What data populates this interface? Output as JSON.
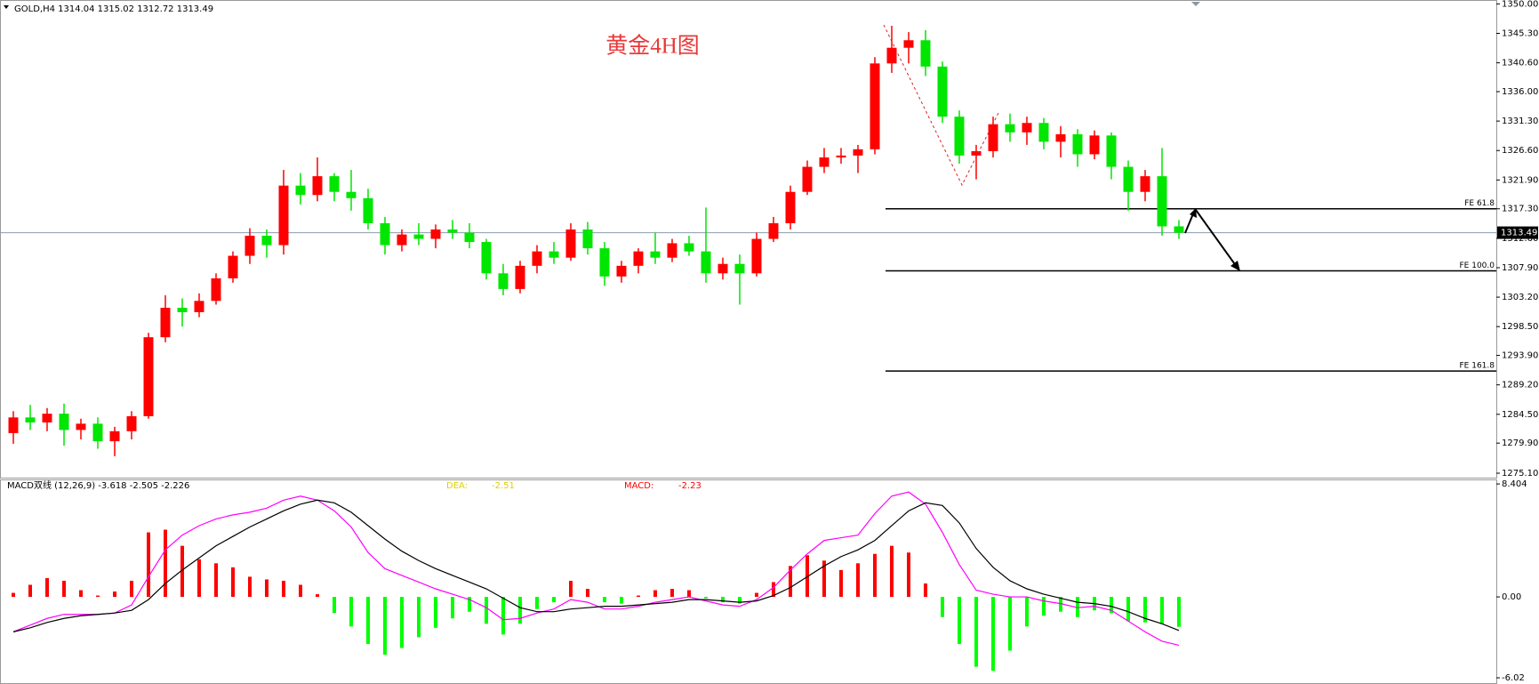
{
  "chart_data": [
    {
      "type": "candlestick",
      "header": "GOLD,H4  1314.04 1315.02 1312.72 1313.49",
      "title": "黄金4H图",
      "open": [
        1281.5,
        1284.0,
        1283.2,
        1284.6,
        1282.0,
        1283.0,
        1280.2,
        1281.8,
        1284.2,
        1296.8,
        1301.5,
        1300.8,
        1302.6,
        1306.2,
        1309.8,
        1313.0,
        1311.5,
        1321.0,
        1319.5,
        1322.5,
        1320.0,
        1319.0,
        1315.0,
        1311.5,
        1313.2,
        1312.5,
        1314.0,
        1313.5,
        1312.0,
        1307.0,
        1304.5,
        1308.2,
        1310.5,
        1309.5,
        1314.0,
        1311.0,
        1306.5,
        1308.2,
        1310.5,
        1309.5,
        1311.8,
        1310.5,
        1307.0,
        1308.5,
        1307.0,
        1312.5,
        1315.0,
        1320.0,
        1324.0,
        1325.5,
        1325.8,
        1326.8,
        1340.5,
        1343.0,
        1344.2,
        1340.0,
        1332.0,
        1325.8,
        1326.5,
        1330.8,
        1329.5,
        1331.0,
        1328.0,
        1329.2,
        1326.0,
        1329.0,
        1324.0,
        1320.0,
        1322.5,
        1314.5
      ],
      "high": [
        1285.0,
        1286.0,
        1285.5,
        1286.2,
        1283.8,
        1284.0,
        1282.5,
        1285.0,
        1297.5,
        1303.5,
        1303.0,
        1303.8,
        1307.0,
        1310.5,
        1314.2,
        1314.0,
        1323.5,
        1323.0,
        1325.5,
        1323.0,
        1323.5,
        1320.5,
        1316.0,
        1314.0,
        1315.0,
        1314.8,
        1315.5,
        1315.0,
        1312.5,
        1308.5,
        1309.0,
        1311.5,
        1312.0,
        1315.0,
        1315.2,
        1312.0,
        1309.0,
        1311.0,
        1313.5,
        1312.5,
        1313.0,
        1317.5,
        1309.5,
        1310.0,
        1313.5,
        1316.0,
        1321.0,
        1325.0,
        1327.0,
        1327.0,
        1327.5,
        1341.5,
        1346.5,
        1345.5,
        1345.8,
        1340.8,
        1333.0,
        1327.5,
        1332.0,
        1332.5,
        1332.0,
        1331.8,
        1330.5,
        1330.0,
        1329.8,
        1329.5,
        1325.0,
        1323.5,
        1327.0,
        1315.5
      ],
      "low": [
        1279.8,
        1282.0,
        1281.8,
        1279.5,
        1280.5,
        1279.0,
        1277.8,
        1280.5,
        1283.8,
        1296.0,
        1298.5,
        1300.0,
        1302.0,
        1305.5,
        1308.5,
        1309.5,
        1310.0,
        1318.0,
        1318.5,
        1318.5,
        1317.0,
        1314.0,
        1310.0,
        1310.5,
        1311.5,
        1311.0,
        1312.5,
        1311.0,
        1306.0,
        1303.5,
        1303.8,
        1307.0,
        1308.5,
        1309.0,
        1310.0,
        1305.0,
        1305.5,
        1307.0,
        1308.5,
        1308.8,
        1309.8,
        1305.5,
        1306.0,
        1302.0,
        1306.5,
        1312.0,
        1314.0,
        1319.5,
        1323.0,
        1324.5,
        1323.0,
        1326.0,
        1339.0,
        1340.5,
        1338.5,
        1331.0,
        1324.5,
        1322.0,
        1325.5,
        1328.0,
        1327.5,
        1326.8,
        1325.5,
        1324.0,
        1325.2,
        1322.0,
        1317.0,
        1318.5,
        1313.0,
        1312.5
      ],
      "close": [
        1284.0,
        1283.2,
        1284.6,
        1282.0,
        1283.0,
        1280.2,
        1281.8,
        1284.2,
        1296.8,
        1301.5,
        1300.8,
        1302.6,
        1306.2,
        1309.8,
        1313.0,
        1311.5,
        1321.0,
        1319.5,
        1322.5,
        1320.0,
        1319.0,
        1315.0,
        1311.5,
        1313.2,
        1312.5,
        1314.0,
        1313.5,
        1312.0,
        1307.0,
        1304.5,
        1308.2,
        1310.5,
        1309.5,
        1314.0,
        1311.0,
        1306.5,
        1308.2,
        1310.5,
        1309.5,
        1311.8,
        1310.5,
        1307.0,
        1308.5,
        1307.0,
        1312.5,
        1315.0,
        1320.0,
        1324.0,
        1325.5,
        1325.8,
        1326.8,
        1340.5,
        1343.0,
        1344.2,
        1340.0,
        1332.0,
        1325.8,
        1326.5,
        1330.8,
        1329.5,
        1331.0,
        1328.0,
        1329.2,
        1326.0,
        1329.0,
        1324.0,
        1320.0,
        1322.5,
        1314.5,
        1313.49
      ],
      "up_color": "#ff0000",
      "down_color": "#00e600",
      "ylim": [
        1275.1,
        1350
      ],
      "yticks": [
        {
          "value": 1350,
          "label": "1350.00"
        },
        {
          "value": 1345.3,
          "label": "1345.30"
        },
        {
          "value": 1340.6,
          "label": "1340.60"
        },
        {
          "value": 1336,
          "label": "1336.00"
        },
        {
          "value": 1331.3,
          "label": "1331.30"
        },
        {
          "value": 1326.6,
          "label": "1326.60"
        },
        {
          "value": 1321.9,
          "label": "1321.90"
        },
        {
          "value": 1317.3,
          "label": "1317.30"
        },
        {
          "value": 1312.6,
          "label": "1312.60"
        },
        {
          "value": 1307.9,
          "label": "1307.90"
        },
        {
          "value": 1303.2,
          "label": "1303.20"
        },
        {
          "value": 1298.5,
          "label": "1298.50"
        },
        {
          "value": 1293.9,
          "label": "1293.90"
        },
        {
          "value": 1289.2,
          "label": "1289.20"
        },
        {
          "value": 1284.5,
          "label": "1284.50"
        },
        {
          "value": 1279.9,
          "label": "1279.90"
        },
        {
          "value": 1275.1,
          "label": "1275.10"
        }
      ],
      "last_price": 1313.49,
      "levels": [
        {
          "label": "FE 61.8",
          "value": 1317.3
        },
        {
          "label": "FE 100.0",
          "value": 1307.4
        },
        {
          "label": "FE 161.8",
          "value": 1291.4
        }
      ]
    },
    {
      "type": "macd",
      "header": "MACD双线 (12,26,9) -3.618 -2.505 -2.226",
      "dea_label": "DEA:",
      "dea_value": -2.51,
      "macd_label": "MACD:",
      "macd_value": -2.23,
      "histogram": [
        0.3,
        0.9,
        1.4,
        1.2,
        0.5,
        0.1,
        0.4,
        1.2,
        4.8,
        5.0,
        3.8,
        2.8,
        2.5,
        2.2,
        1.5,
        1.3,
        1.2,
        0.9,
        0.2,
        -1.2,
        -2.2,
        -3.5,
        -4.3,
        -3.8,
        -3.0,
        -2.3,
        -1.6,
        -1.1,
        -2.0,
        -2.8,
        -2.0,
        -0.9,
        -0.4,
        1.2,
        0.6,
        -0.4,
        -0.5,
        0.1,
        0.5,
        0.6,
        0.5,
        -0.1,
        -0.4,
        -0.5,
        0.3,
        1.1,
        2.3,
        3.1,
        2.7,
        2.0,
        2.5,
        3.2,
        3.8,
        3.3,
        1.0,
        -1.5,
        -3.5,
        -5.2,
        -5.5,
        -4.0,
        -2.2,
        -1.4,
        -1.1,
        -1.5,
        -1.0,
        -1.2,
        -1.8,
        -1.9,
        -2.0,
        -2.23
      ],
      "pos_color": "#ff0000",
      "neg_color": "#00ff00",
      "series": [
        {
          "color": "#ff00ff",
          "values": [
            -2.6,
            -2.1,
            -1.6,
            -1.3,
            -1.3,
            -1.3,
            -1.2,
            -0.6,
            1.5,
            3.5,
            4.6,
            5.3,
            5.8,
            6.1,
            6.3,
            6.6,
            7.2,
            7.5,
            7.2,
            6.4,
            5.2,
            3.3,
            2.1,
            1.6,
            1.1,
            0.6,
            0.2,
            -0.2,
            -0.8,
            -1.7,
            -1.6,
            -1.2,
            -0.9,
            -0.2,
            -0.4,
            -0.9,
            -0.9,
            -0.7,
            -0.4,
            -0.2,
            0.0,
            -0.3,
            -0.6,
            -0.7,
            -0.2,
            0.7,
            2.0,
            3.2,
            4.2,
            4.4,
            4.6,
            6.2,
            7.5,
            7.8,
            6.9,
            4.8,
            2.4,
            0.5,
            0.2,
            0.0,
            0.0,
            -0.3,
            -0.5,
            -0.8,
            -0.7,
            -1.0,
            -1.8,
            -2.6,
            -3.3,
            -3.6
          ]
        },
        {
          "color": "#000000",
          "values": [
            -2.6,
            -2.3,
            -1.9,
            -1.6,
            -1.4,
            -1.3,
            -1.2,
            -1.0,
            -0.2,
            1.0,
            2.0,
            2.9,
            3.8,
            4.5,
            5.2,
            5.8,
            6.4,
            6.9,
            7.2,
            7.0,
            6.3,
            5.3,
            4.3,
            3.4,
            2.7,
            2.1,
            1.6,
            1.1,
            0.6,
            -0.1,
            -0.8,
            -1.1,
            -1.1,
            -0.9,
            -0.8,
            -0.7,
            -0.7,
            -0.6,
            -0.5,
            -0.4,
            -0.2,
            -0.2,
            -0.3,
            -0.4,
            -0.3,
            0.1,
            0.7,
            1.5,
            2.3,
            3.0,
            3.5,
            4.2,
            5.3,
            6.4,
            7.0,
            6.8,
            5.5,
            3.6,
            2.2,
            1.2,
            0.6,
            0.2,
            -0.1,
            -0.4,
            -0.5,
            -0.7,
            -1.1,
            -1.6,
            -2.0,
            -2.5
          ]
        }
      ],
      "ylim": [
        -6.48,
        8.74
      ],
      "yticks": [
        8.404,
        {
          "value": 0,
          "label": "0.00"
        },
        -6.02
      ]
    }
  ]
}
